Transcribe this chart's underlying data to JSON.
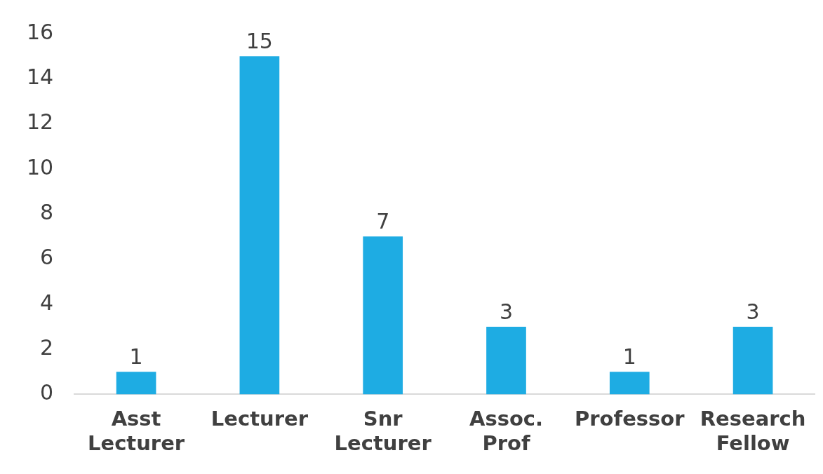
{
  "chart_data": {
    "type": "bar",
    "categories": [
      "Asst Lecturer",
      "Lecturer",
      "Snr Lecturer",
      "Assoc. Prof",
      "Professor",
      "Research Fellow"
    ],
    "values": [
      1,
      15,
      7,
      3,
      1,
      3
    ],
    "color": "#1eace3",
    "ylim": [
      0,
      16
    ],
    "yticks": [
      0,
      2,
      4,
      6,
      8,
      10,
      12,
      14,
      16
    ],
    "grid": false,
    "legend": false,
    "data_labels": true
  }
}
